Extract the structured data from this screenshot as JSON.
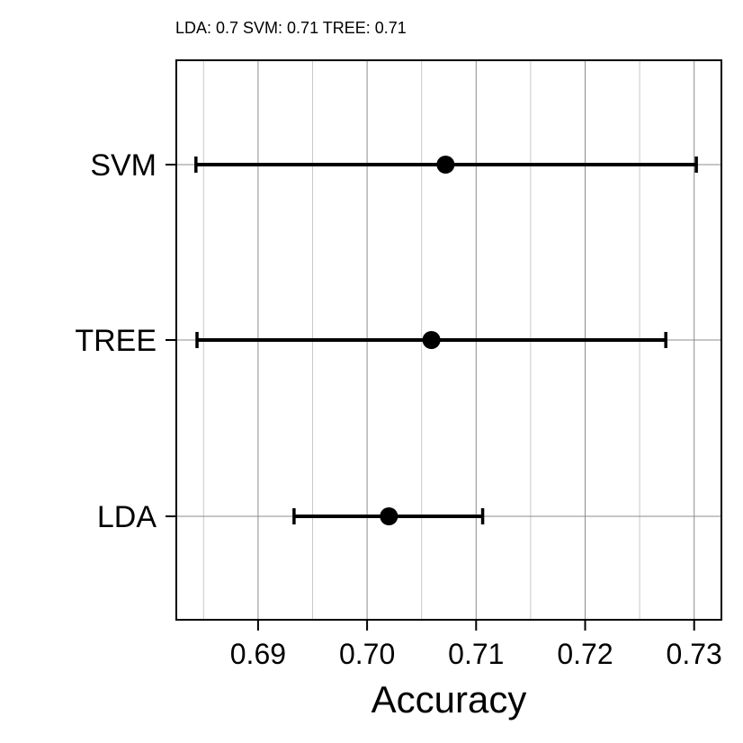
{
  "chart_data": {
    "type": "dotplot",
    "title": "",
    "subtitle": "LDA:  0.7 SVM:  0.71 TREE:  0.71",
    "xlabel": "Accuracy",
    "ylabel": "",
    "xlim": [
      0.6825,
      0.7325
    ],
    "x_ticks": [
      0.69,
      0.7,
      0.71,
      0.72,
      0.73
    ],
    "x_tick_labels": [
      "0.69",
      "0.70",
      "0.71",
      "0.72",
      "0.73"
    ],
    "grid": true,
    "categories": [
      "LDA",
      "TREE",
      "SVM"
    ],
    "series": [
      {
        "points": [
          {
            "category": "LDA",
            "value": 0.702,
            "lower": 0.6933,
            "upper": 0.7106
          },
          {
            "category": "TREE",
            "value": 0.7059,
            "lower": 0.6844,
            "upper": 0.7274
          },
          {
            "category": "SVM",
            "value": 0.7072,
            "lower": 0.6843,
            "upper": 0.7302
          }
        ]
      }
    ]
  }
}
